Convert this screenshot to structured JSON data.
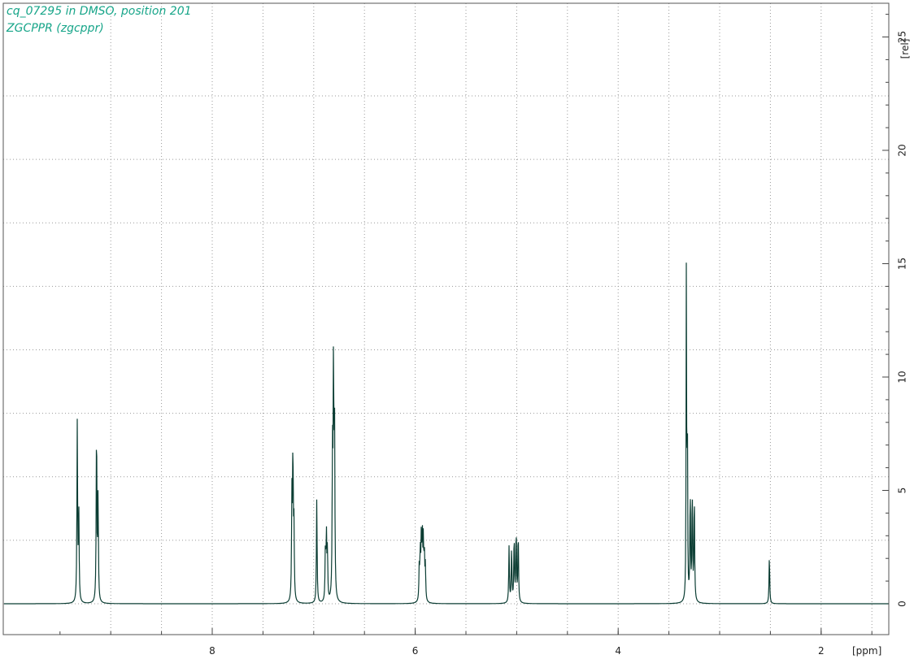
{
  "chart_data": {
    "type": "line",
    "title": "cq_07295 in DMSO, position 201",
    "subtitle": "ZGCPPR (zgcppr)",
    "xlabel": "[ppm]",
    "ylabel": "[rel]",
    "xlim": [
      10.0,
      1.3
    ],
    "ylim": [
      -1.4,
      26.5
    ],
    "x_ticks": [
      "8",
      "6",
      "4",
      "2"
    ],
    "y_ticks": [
      "0",
      "5",
      "10",
      "15",
      "20",
      "25"
    ],
    "grid": true,
    "series_color": "#0b3d33",
    "peaks": [
      {
        "ppm": 9.33,
        "height": 7.9,
        "width": 0.004
      },
      {
        "ppm": 9.315,
        "height": 4.0,
        "width": 0.004
      },
      {
        "ppm": 9.14,
        "height": 7.9,
        "width": 0.004
      },
      {
        "ppm": 9.125,
        "height": 4.6,
        "width": 0.004
      },
      {
        "ppm": 7.215,
        "height": 4.5,
        "width": 0.004
      },
      {
        "ppm": 7.205,
        "height": 6.5,
        "width": 0.004
      },
      {
        "ppm": 7.195,
        "height": 3.2,
        "width": 0.004
      },
      {
        "ppm": 6.97,
        "height": 4.6,
        "width": 0.004
      },
      {
        "ppm": 6.885,
        "height": 2.3,
        "width": 0.004
      },
      {
        "ppm": 6.875,
        "height": 2.8,
        "width": 0.004
      },
      {
        "ppm": 6.865,
        "height": 2.2,
        "width": 0.004
      },
      {
        "ppm": 6.815,
        "height": 6.2,
        "width": 0.004
      },
      {
        "ppm": 6.805,
        "height": 10.1,
        "width": 0.004
      },
      {
        "ppm": 6.795,
        "height": 7.6,
        "width": 0.004
      },
      {
        "ppm": 5.96,
        "height": 1.5,
        "width": 0.004
      },
      {
        "ppm": 5.95,
        "height": 2.1,
        "width": 0.004
      },
      {
        "ppm": 5.94,
        "height": 2.6,
        "width": 0.004
      },
      {
        "ppm": 5.93,
        "height": 2.8,
        "width": 0.004
      },
      {
        "ppm": 5.92,
        "height": 2.5,
        "width": 0.004
      },
      {
        "ppm": 5.91,
        "height": 2.0,
        "width": 0.004
      },
      {
        "ppm": 5.9,
        "height": 1.5,
        "width": 0.004
      },
      {
        "ppm": 5.075,
        "height": 2.5,
        "width": 0.004
      },
      {
        "ppm": 5.05,
        "height": 2.4,
        "width": 0.004
      },
      {
        "ppm": 5.025,
        "height": 2.9,
        "width": 0.004
      },
      {
        "ppm": 5.005,
        "height": 3.2,
        "width": 0.004
      },
      {
        "ppm": 4.985,
        "height": 3.1,
        "width": 0.004
      },
      {
        "ppm": 3.328,
        "height": 14.8,
        "width": 0.003
      },
      {
        "ppm": 3.318,
        "height": 8.0,
        "width": 0.003
      },
      {
        "ppm": 3.29,
        "height": 4.8,
        "width": 0.004
      },
      {
        "ppm": 3.27,
        "height": 4.8,
        "width": 0.004
      },
      {
        "ppm": 3.25,
        "height": 4.7,
        "width": 0.004
      },
      {
        "ppm": 2.51,
        "height": 2.1,
        "width": 0.004
      }
    ]
  }
}
